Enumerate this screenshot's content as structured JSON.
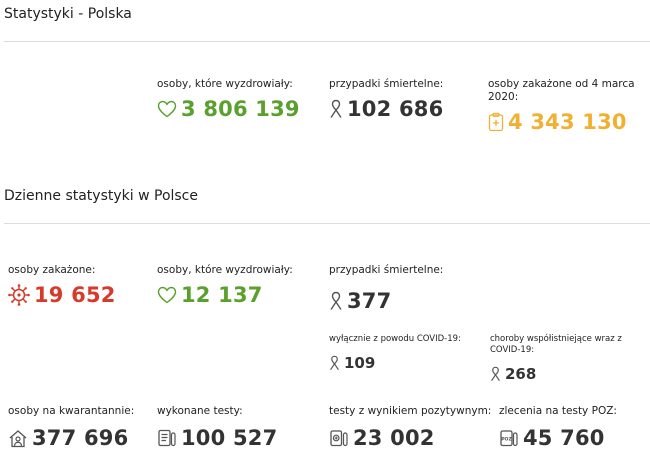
{
  "summary": {
    "title": "Statystyki - Polska",
    "recovered": {
      "label": "osoby, które wyzdrowiały:",
      "value": "3 806 139",
      "icon": "heart-icon"
    },
    "deaths": {
      "label": "przypadki śmiertelne:",
      "value": "102 686",
      "icon": "ribbon-icon"
    },
    "infected": {
      "label": "osoby zakażone od 4 marca 2020:",
      "value": "4 343 130",
      "icon": "clipboard-medical-icon"
    }
  },
  "daily": {
    "title": "Dzienne statystyki w Polsce",
    "infected": {
      "label": "osoby zakażone:",
      "value": "19 652",
      "icon": "virus-icon"
    },
    "recovered": {
      "label": "osoby, które wyzdrowiały:",
      "value": "12 137",
      "icon": "heart-icon"
    },
    "deaths": {
      "label": "przypadki śmiertelne:",
      "value": "377",
      "icon": "ribbon-icon"
    },
    "deaths_covid_only": {
      "label": "wyłącznie z powodu COVID-19:",
      "value": "109",
      "icon": "ribbon-icon"
    },
    "deaths_comorbid": {
      "label": "choroby współistniejące wraz z COVID-19:",
      "value": "268",
      "icon": "ribbon-icon"
    },
    "quarantine": {
      "label": "osoby na kwarantannie:",
      "value": "377 696",
      "icon": "house-person-icon"
    },
    "tests": {
      "label": "wykonane testy:",
      "value": "100 527",
      "icon": "test-list-icon"
    },
    "positive_tests": {
      "label": "testy z wynikiem pozytywnym:",
      "value": "23 002",
      "icon": "positive-test-icon"
    },
    "poz_orders": {
      "label": "zlecenia na testy POZ:",
      "value": "45 760",
      "icon": "poz-order-icon"
    }
  },
  "colors": {
    "green": "#5aa02c",
    "orange": "#f0b032",
    "red": "#d63a2a",
    "dark": "#333333"
  }
}
